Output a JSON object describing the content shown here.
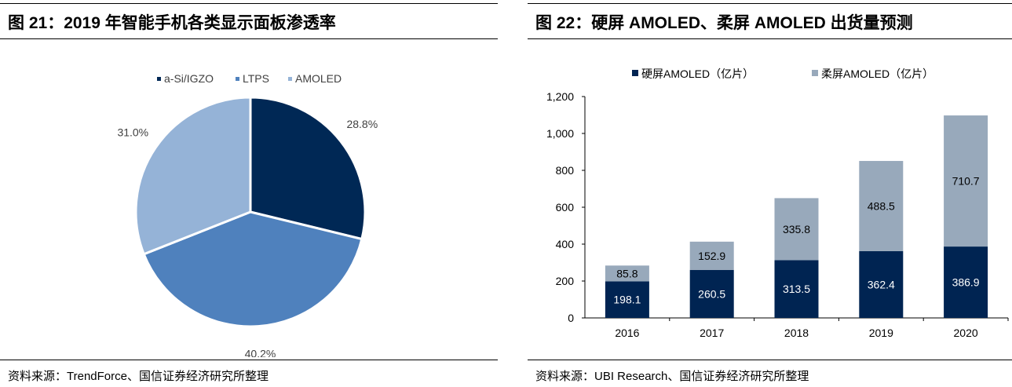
{
  "left": {
    "title": "图 21：2019 年智能手机各类显示面板渗透率",
    "source": "资料来源：TrendForce、国信证券经济研究所整理"
  },
  "right": {
    "title": "图 22：硬屏 AMOLED、柔屏 AMOLED 出货量预测",
    "source": "资料来源：UBI Research、国信证券经济研究所整理"
  },
  "chart_data": [
    {
      "type": "pie",
      "legend_position": "top",
      "slices": [
        {
          "name": "a-Si/IGZO",
          "value": 28.8,
          "label": "28.8%",
          "color": "#002855"
        },
        {
          "name": "LTPS",
          "value": 40.2,
          "label": "40.2%",
          "color": "#4f81bd"
        },
        {
          "name": "AMOLED",
          "value": 31.0,
          "label": "31.0%",
          "color": "#95b3d7"
        }
      ]
    },
    {
      "type": "bar",
      "stacked": true,
      "legend_position": "top",
      "categories": [
        "2016",
        "2017",
        "2018",
        "2019",
        "2020"
      ],
      "ylim": [
        0,
        1200
      ],
      "yticks": [
        "0",
        "200",
        "400",
        "600",
        "800",
        "1,000",
        "1,200"
      ],
      "ytick_values": [
        0,
        200,
        400,
        600,
        800,
        1000,
        1200
      ],
      "grid": false,
      "series": [
        {
          "name": "硬屏AMOLED（亿片）",
          "values": [
            198.1,
            260.5,
            313.5,
            362.4,
            386.9
          ],
          "labels": [
            "198.1",
            "260.5",
            "313.5",
            "362.4",
            "386.9"
          ],
          "color": "#002452"
        },
        {
          "name": "柔屏AMOLED（亿片）",
          "values": [
            85.8,
            152.9,
            335.8,
            488.5,
            710.7
          ],
          "labels": [
            "85.8",
            "152.9",
            "335.8",
            "488.5",
            "710.7"
          ],
          "color": "#98a9bb"
        }
      ]
    }
  ]
}
